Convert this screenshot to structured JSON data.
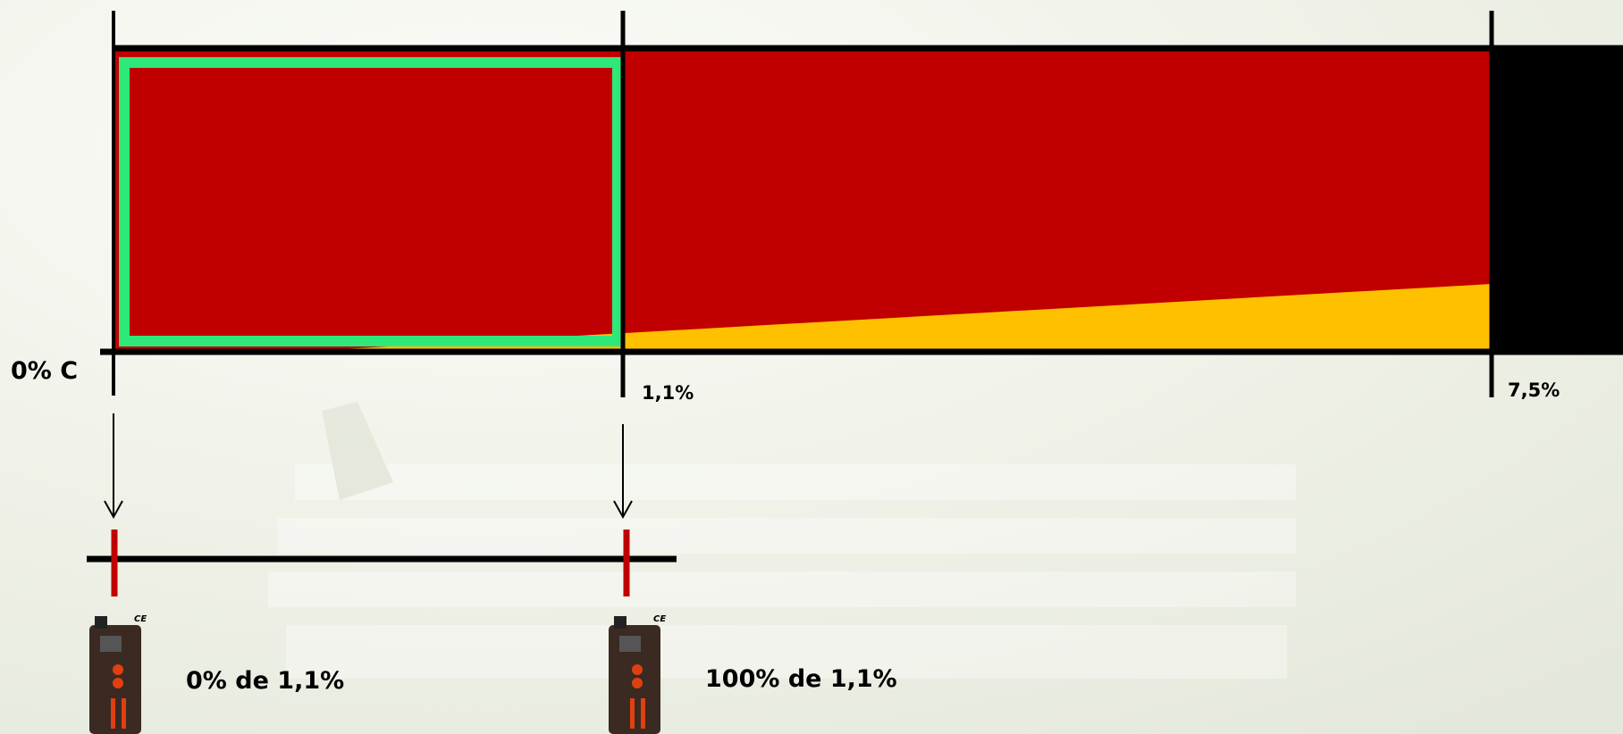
{
  "axis": {
    "start_label": "0% C",
    "mid_label": "1,1%",
    "end_label": "7,5%"
  },
  "readings": [
    {
      "label": "0% de 1,1%",
      "device_mark": "CE"
    },
    {
      "label": "100% de 1,1%",
      "device_mark": "CE"
    }
  ]
}
